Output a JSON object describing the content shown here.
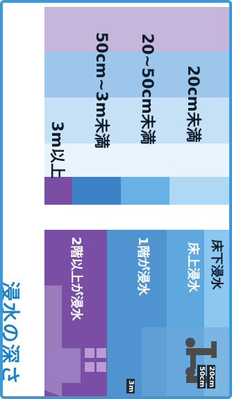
{
  "title": "浸水の深さ",
  "levels": [
    {
      "range": "3m以上",
      "depth": "2階以上が浸水",
      "color": "#7b4ea6",
      "swatch": "#b07fc9"
    },
    {
      "range": "50cm~3m未満",
      "depth": "1階が浸水",
      "color": "#4f94d0",
      "swatch": "#3b83c6"
    },
    {
      "range": "20~50cm未満",
      "depth": "床上浸水",
      "color": "#7fbbe6",
      "swatch": "#68b1e4"
    },
    {
      "range": "20cm未満",
      "depth": "床下浸水",
      "color": "#c6e2f6",
      "swatch": "#aed8f4"
    }
  ],
  "scale": {
    "m3": "3m",
    "cm50": "50cm",
    "cm20": "20cm"
  },
  "colors": {
    "border": "#3a9ad9",
    "title": "#1f7fc2"
  }
}
